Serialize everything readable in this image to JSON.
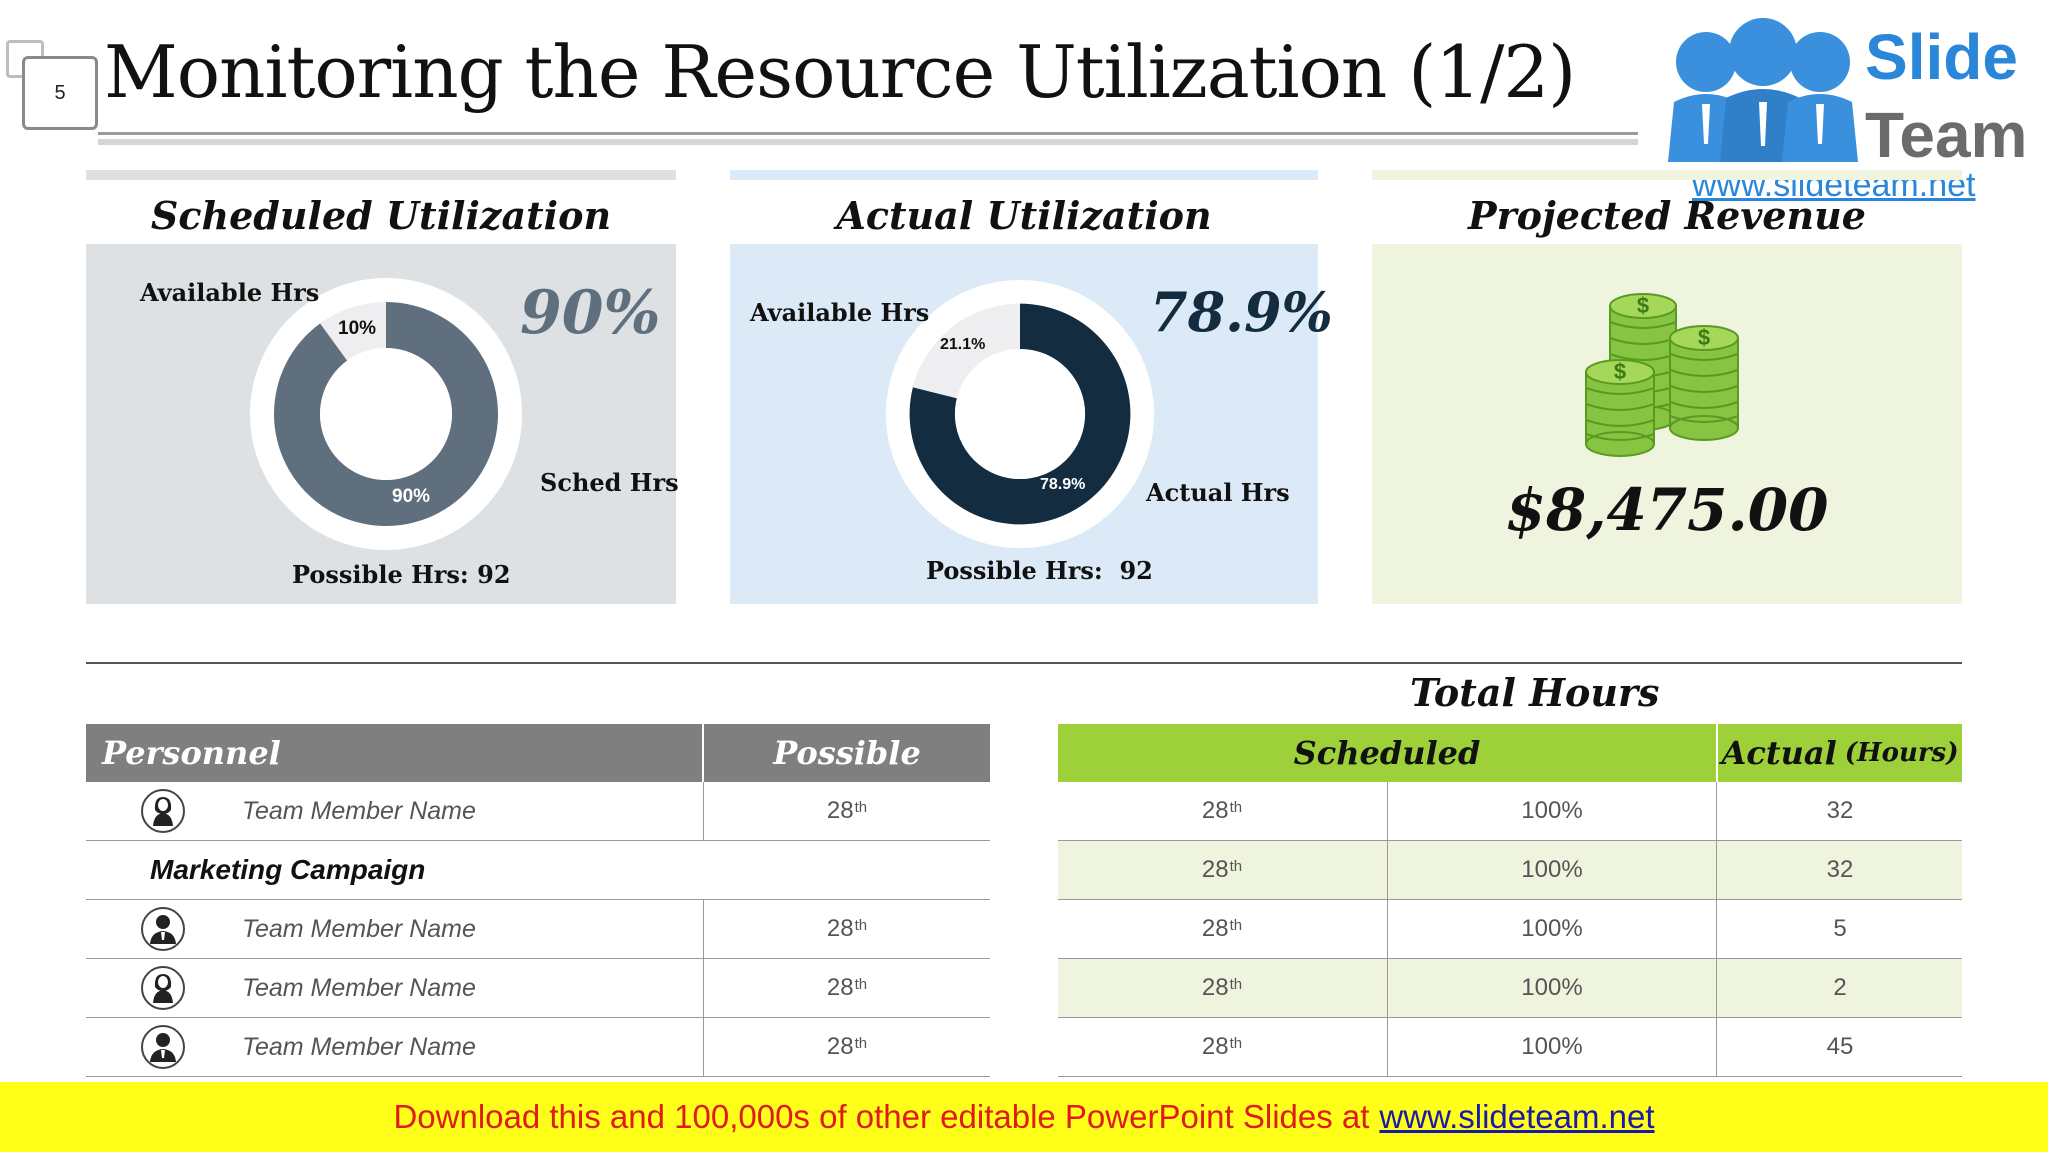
{
  "slide": {
    "number": "5",
    "title": "Monitoring the Resource Utilization (1/2)"
  },
  "logo": {
    "line1": "Slide",
    "line2": "Team",
    "url": "www.slideteam.net"
  },
  "scheduled": {
    "title": "Scheduled Utilization",
    "available_label": "Available Hrs",
    "sched_label": "Sched Hrs",
    "possible_label": "Possible Hrs: 92",
    "big_pct": "90%",
    "slice_small_label": "10%",
    "slice_big_label": "90%",
    "color": "#5f6f7d"
  },
  "actual": {
    "title": "Actual Utilization",
    "available_label": "Available Hrs",
    "actual_label": "Actual Hrs",
    "possible_label": "Possible Hrs:  92",
    "big_pct": "78.9%",
    "slice_small_label": "21.1%",
    "slice_big_label": "78.9%",
    "color": "#142c40"
  },
  "revenue": {
    "title": "Projected Revenue",
    "amount": "$8,475.00",
    "icon": "money-coins-icon"
  },
  "chart_data": [
    {
      "type": "pie",
      "title": "Scheduled Utilization",
      "categories": [
        "Sched Hrs",
        "Available Hrs"
      ],
      "values": [
        90,
        10
      ]
    },
    {
      "type": "pie",
      "title": "Actual Utilization",
      "categories": [
        "Actual Hrs",
        "Available Hrs"
      ],
      "values": [
        78.9,
        21.1
      ]
    }
  ],
  "personnel_table": {
    "header_personnel": "Personnel",
    "header_possible": "Possible",
    "section_label": "Marketing Campaign",
    "rows": [
      {
        "name": "Team Member Name",
        "possible": "28",
        "sup": "th",
        "avatar": "female-user-icon"
      },
      {
        "name": "Team Member Name",
        "possible": "28",
        "sup": "th",
        "avatar": "male-user-icon"
      },
      {
        "name": "Team Member Name",
        "possible": "28",
        "sup": "th",
        "avatar": "female-user-icon"
      },
      {
        "name": "Team Member Name",
        "possible": "28",
        "sup": "th",
        "avatar": "male-user-icon"
      }
    ]
  },
  "hours_table": {
    "title": "Total Hours",
    "header_scheduled": "Scheduled",
    "header_actual": "Actual",
    "header_actual_unit": "(Hours)",
    "rows": [
      {
        "sched": "28",
        "sup": "th",
        "pct": "100%",
        "actual": "32"
      },
      {
        "sched": "28",
        "sup": "th",
        "pct": "100%",
        "actual": "32"
      },
      {
        "sched": "28",
        "sup": "th",
        "pct": "100%",
        "actual": "5"
      },
      {
        "sched": "28",
        "sup": "th",
        "pct": "100%",
        "actual": "2"
      },
      {
        "sched": "28",
        "sup": "th",
        "pct": "100%",
        "actual": "45"
      }
    ]
  },
  "footer": {
    "text": "Download this and 100,000s of other editable PowerPoint Slides at",
    "link": "www.slideteam.net"
  }
}
